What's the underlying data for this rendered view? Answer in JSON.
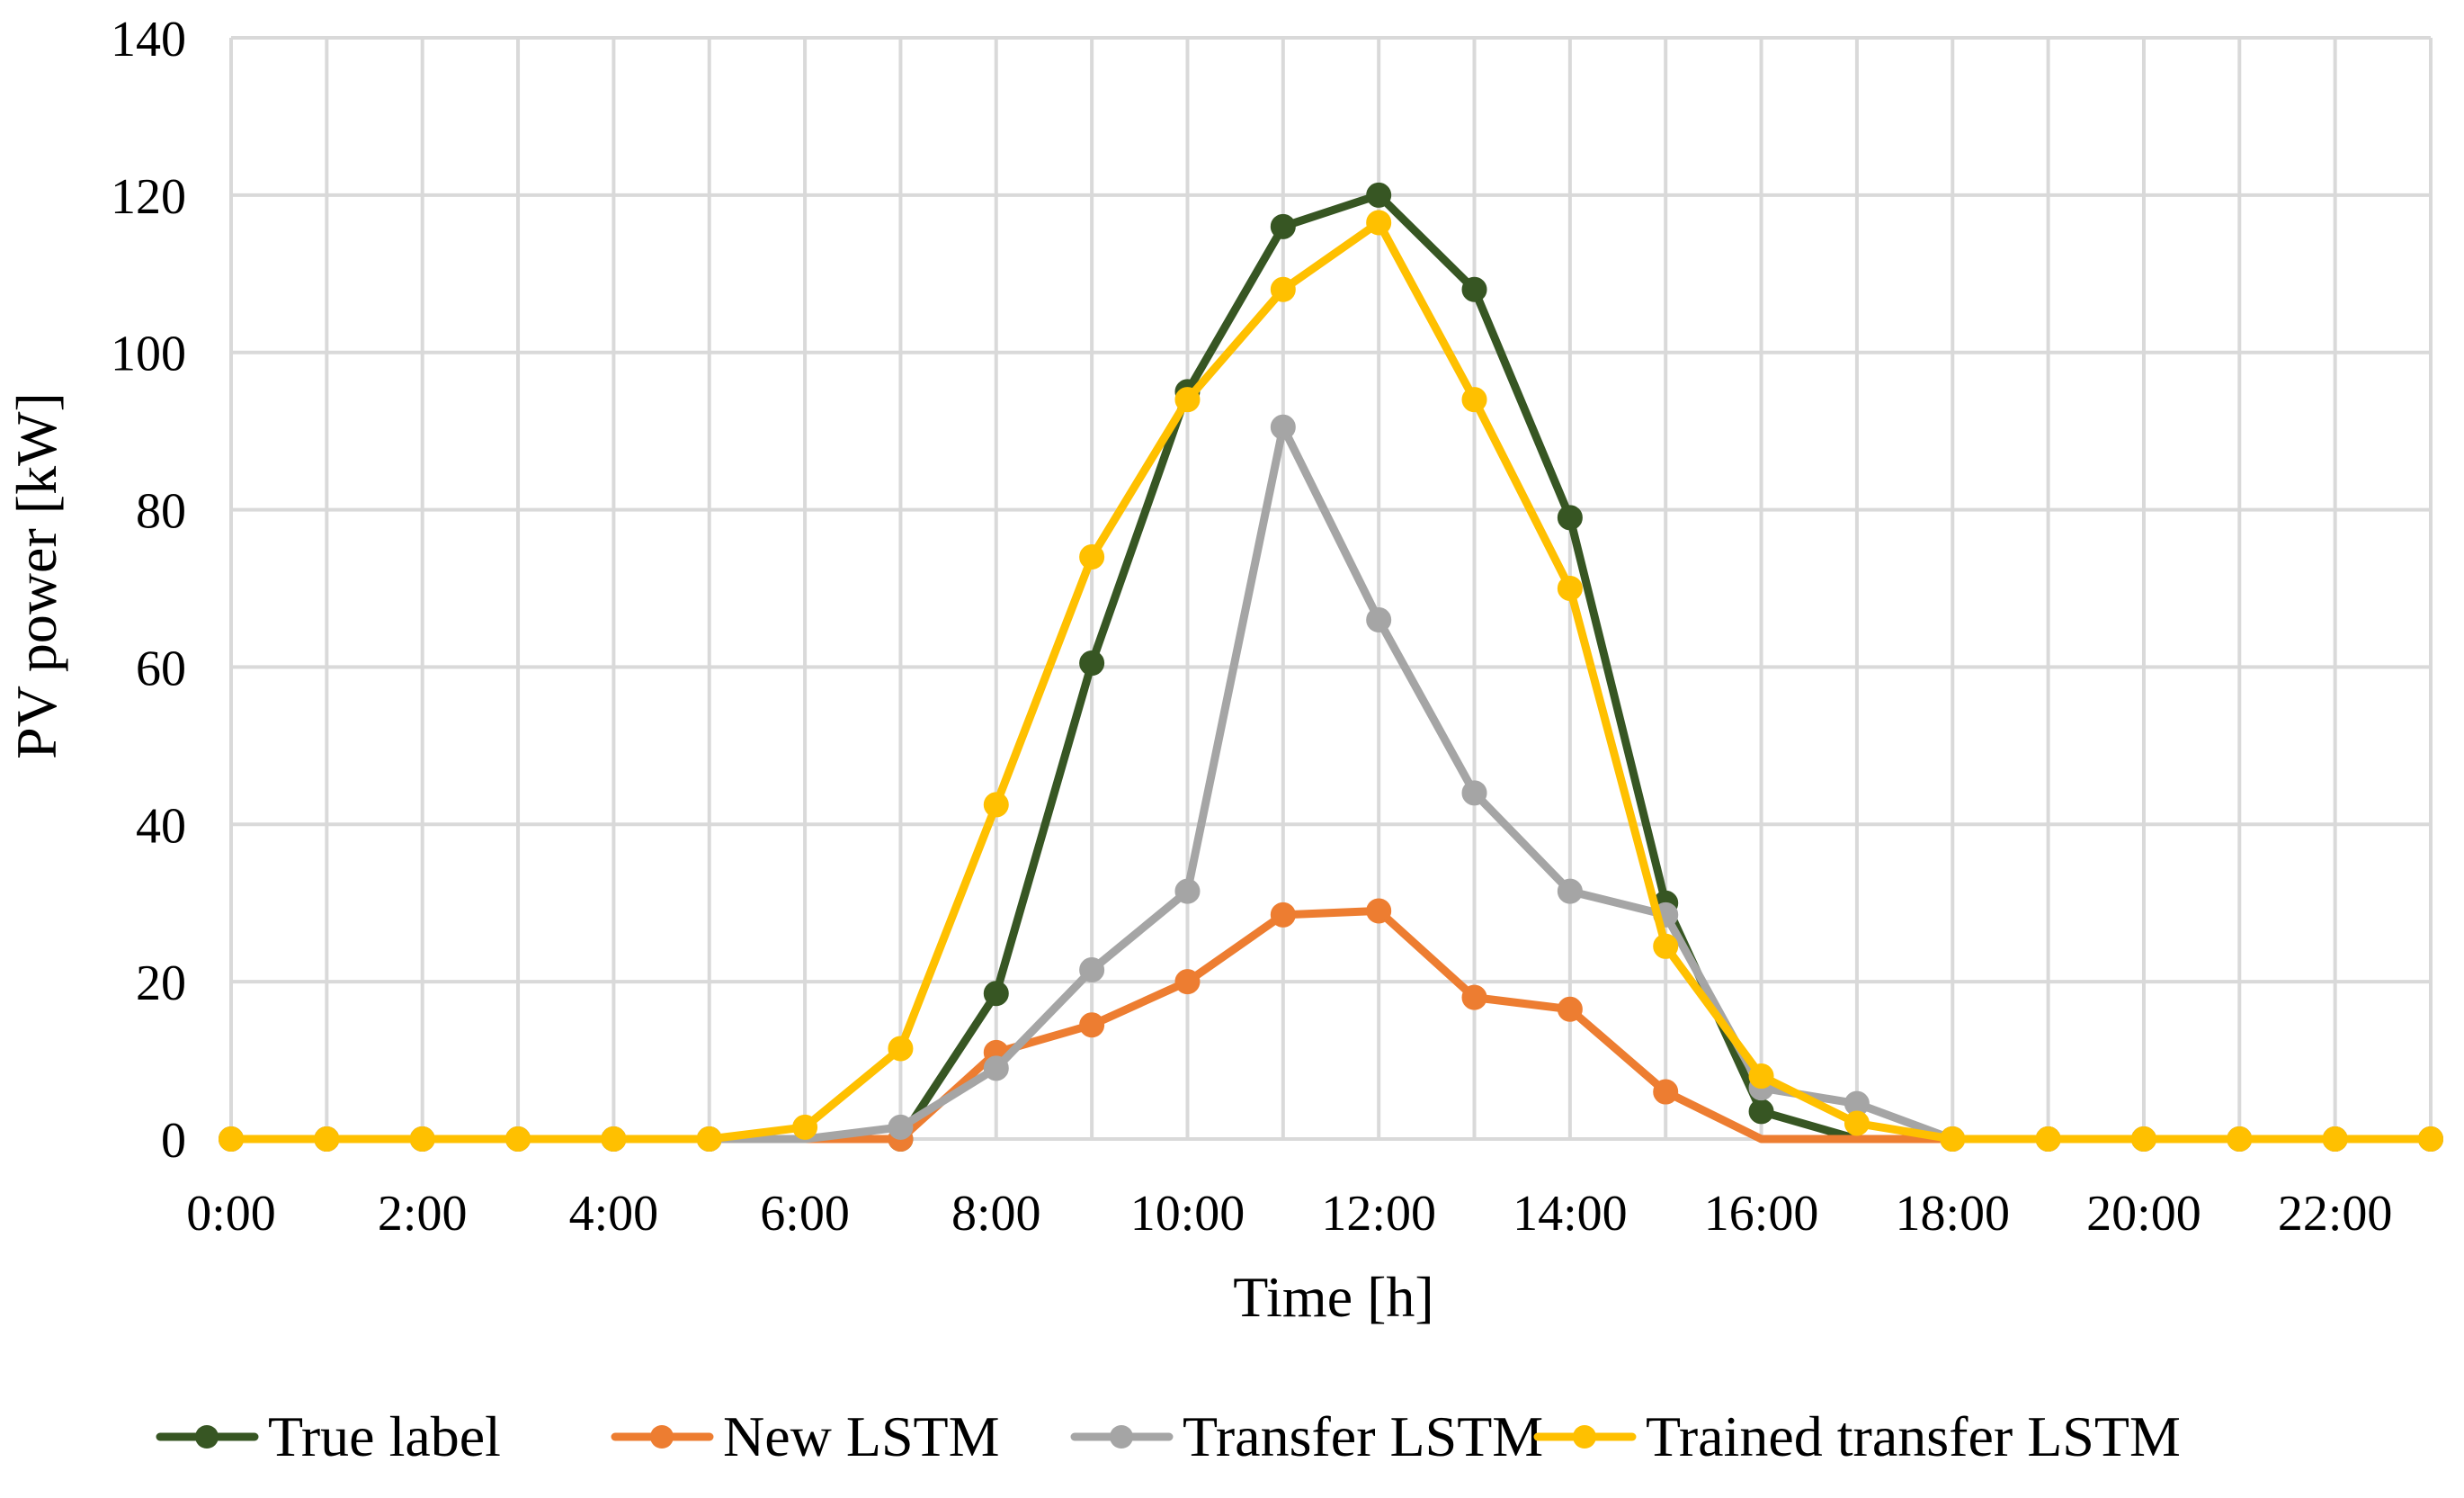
{
  "chart_data": {
    "type": "line",
    "title": "",
    "xlabel": "Time [h]",
    "ylabel": "PV power [kW]",
    "x": [
      0,
      1,
      2,
      3,
      4,
      5,
      6,
      7,
      8,
      9,
      10,
      11,
      12,
      13,
      14,
      15,
      16,
      17,
      18,
      19,
      20,
      21,
      22,
      23
    ],
    "x_tick_labels": [
      "0:00",
      "2:00",
      "4:00",
      "6:00",
      "8:00",
      "10:00",
      "12:00",
      "14:00",
      "16:00",
      "18:00",
      "20:00",
      "22:00"
    ],
    "x_tick_hours": [
      0,
      2,
      4,
      6,
      8,
      10,
      12,
      14,
      16,
      18,
      20,
      22
    ],
    "xlim": [
      0,
      23
    ],
    "ylim": [
      0,
      140
    ],
    "y_ticks": [
      0,
      20,
      40,
      60,
      80,
      100,
      120,
      140
    ],
    "grid": true,
    "legend_position": "bottom",
    "series": [
      {
        "name": "True label",
        "color": "#375623",
        "values": [
          0,
          0,
          0,
          0,
          0,
          0,
          0,
          0,
          18.5,
          60.5,
          95,
          116,
          120,
          108,
          79,
          30,
          3.5,
          0,
          0,
          0,
          0,
          0,
          0,
          0
        ],
        "markers": [
          true,
          true,
          true,
          true,
          true,
          true,
          false,
          true,
          true,
          true,
          true,
          true,
          true,
          true,
          true,
          true,
          true,
          false,
          true,
          true,
          true,
          true,
          true,
          true
        ]
      },
      {
        "name": "New LSTM",
        "color": "#ed7d31",
        "values": [
          0,
          0,
          0,
          0,
          0,
          0,
          0,
          0,
          11,
          14.5,
          20,
          28.5,
          29,
          18,
          16.5,
          6,
          0,
          0,
          0,
          0,
          0,
          0,
          0,
          0
        ],
        "markers": [
          true,
          true,
          true,
          true,
          true,
          true,
          false,
          true,
          true,
          true,
          true,
          true,
          true,
          true,
          true,
          true,
          false,
          false,
          true,
          true,
          true,
          true,
          true,
          true
        ]
      },
      {
        "name": "Transfer LSTM",
        "color": "#a5a5a5",
        "values": [
          0,
          0,
          0,
          0,
          0,
          0,
          0,
          1.5,
          9,
          21.5,
          31.5,
          90.5,
          66,
          44,
          31.5,
          28.5,
          6.5,
          4.5,
          0,
          0,
          0,
          0,
          0,
          0
        ],
        "markers": [
          true,
          true,
          true,
          true,
          true,
          true,
          false,
          true,
          true,
          true,
          true,
          true,
          true,
          true,
          true,
          true,
          true,
          true,
          true,
          true,
          true,
          true,
          true,
          true
        ]
      },
      {
        "name": "Trained transfer LSTM",
        "color": "#ffc000",
        "values": [
          0,
          0,
          0,
          0,
          0,
          0,
          1.5,
          11.5,
          42.5,
          74,
          94,
          108,
          116.5,
          94,
          70,
          24.5,
          8,
          2,
          0,
          0,
          0,
          0,
          0,
          0
        ],
        "markers": [
          true,
          true,
          true,
          true,
          true,
          true,
          true,
          true,
          true,
          true,
          true,
          true,
          true,
          true,
          true,
          true,
          true,
          true,
          true,
          true,
          true,
          true,
          true,
          true
        ]
      }
    ]
  }
}
